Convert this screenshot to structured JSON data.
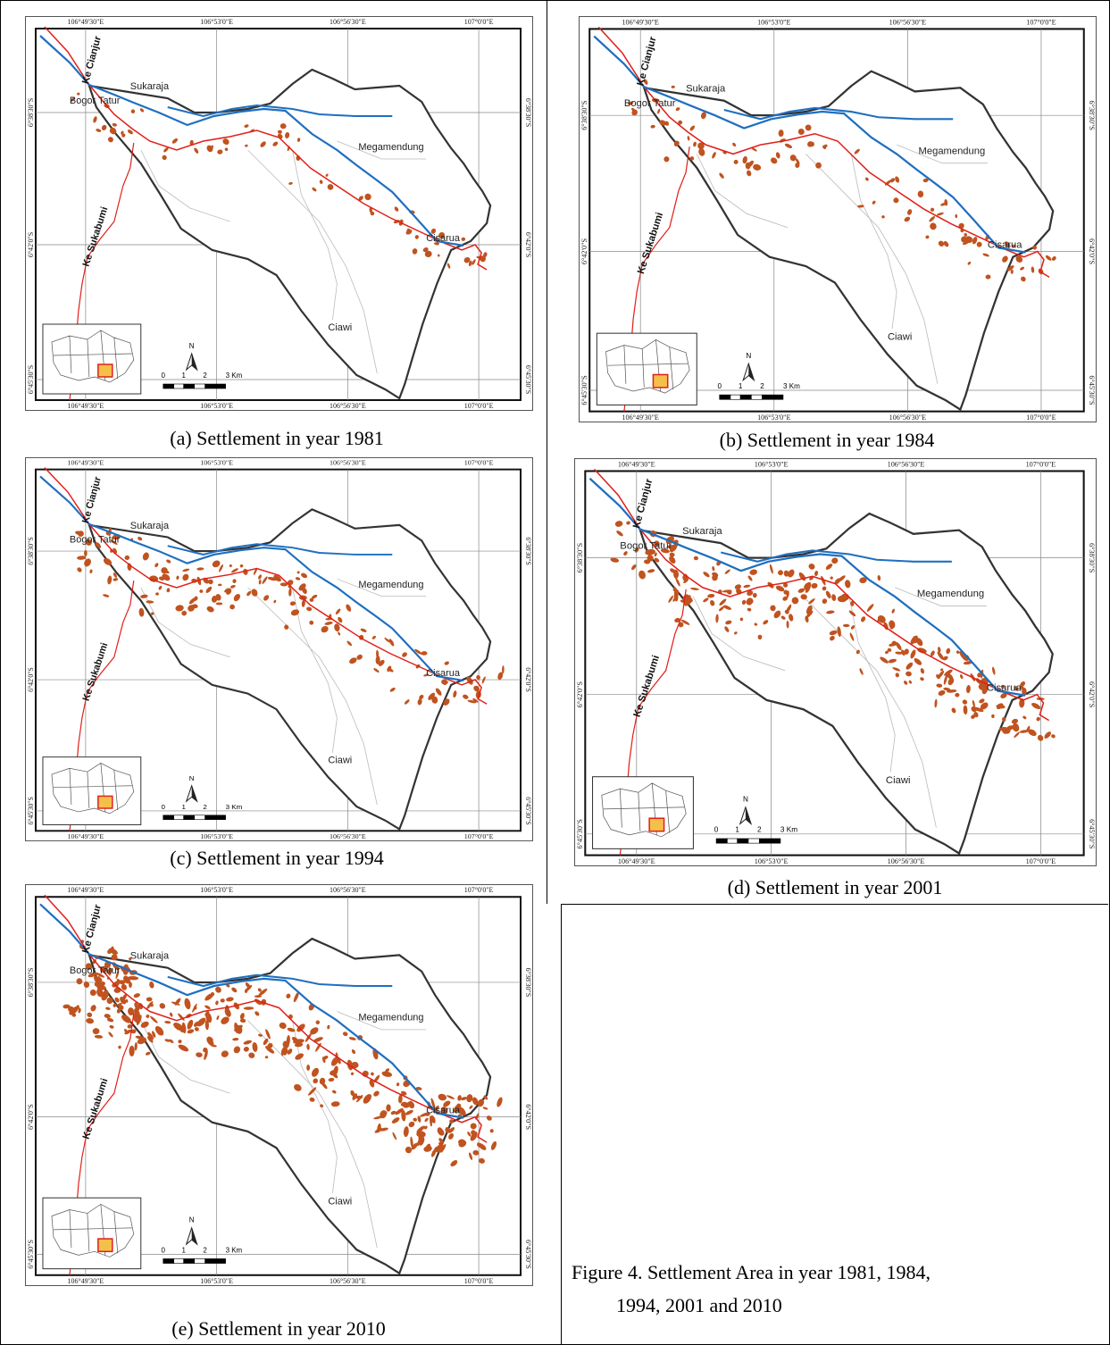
{
  "panels": [
    {
      "caption": "(a) Settlement in year 1981"
    },
    {
      "caption": "(b) Settlement in year 1984"
    },
    {
      "caption": "(c) Settlement in year 1994"
    },
    {
      "caption": "(d) Settlement in year 2001"
    },
    {
      "caption": "(e) Settlement in year 2010"
    }
  ],
  "map_labels": {
    "lon": [
      "106°49'30\"E",
      "106°53'0\"E",
      "106°56'30\"E",
      "107°0'0\"E"
    ],
    "lat": [
      "6°38'30\"S",
      "6°42'0\"S",
      "6°45'30\"S"
    ],
    "places": [
      "Ke Cianjur",
      "Sukaraja",
      "Bogor Tatur",
      "Megamendung",
      "Ke Sukabumi",
      "Cisarua",
      "Ciawi"
    ],
    "north": "N",
    "scale": [
      "0",
      "1",
      "2",
      "3 Km"
    ]
  },
  "figure_caption": [
    "Figure 4. Settlement Area in year 1981, 1984,",
    "1994, 2001 and 2010"
  ]
}
